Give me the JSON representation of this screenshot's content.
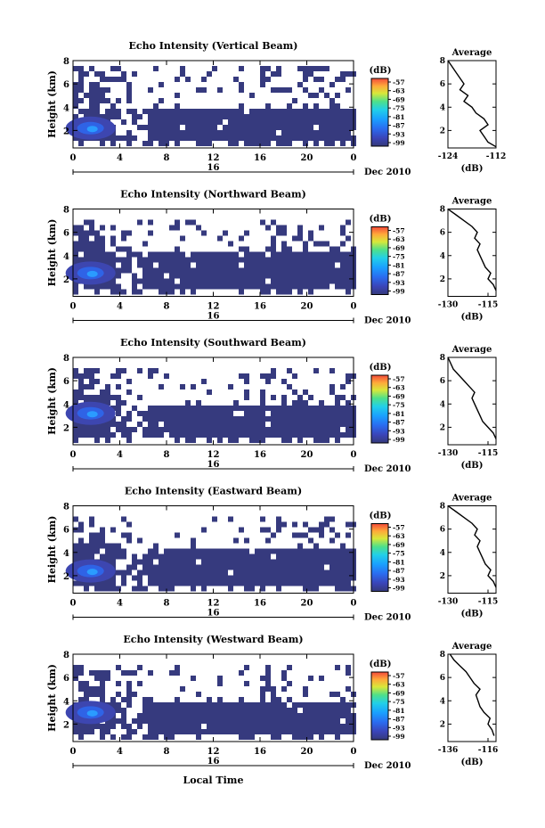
{
  "figure": {
    "xlabel": "Local Time",
    "date_label": "Dec 2010",
    "day_label": "16",
    "cbar_unit": "(dB)",
    "cbar_ticks": [
      "-57",
      "-63",
      "-69",
      "-75",
      "-81",
      "-87",
      "-93",
      "-99"
    ],
    "avg_title": "Average",
    "avg_xlabel": "(dB)"
  },
  "chart_data": [
    {
      "type": "heatmap",
      "title": "Echo Intensity (Vertical Beam)",
      "ylabel": "Height (km)",
      "xticks": [
        "0",
        "4",
        "8",
        "12",
        "16",
        "20",
        "0"
      ],
      "yticks": [
        "2",
        "4",
        "6",
        "8"
      ],
      "xlim": [
        0,
        24
      ],
      "ylim": [
        0.5,
        8
      ],
      "clim": [
        -99,
        -57
      ],
      "ice_base_km": 1.3,
      "ice_top_km": 4.0,
      "cloud_top_km": 7.4,
      "blob_time_h": 1.5,
      "blob_height_km": 2.2,
      "average_profile": {
        "xlim": [
          -124,
          -112
        ],
        "xticks": [
          "-124",
          "-112"
        ],
        "yticks": [
          "2",
          "4",
          "6",
          "8"
        ],
        "height_km": [
          0.6,
          1.0,
          1.5,
          2.0,
          2.5,
          3.0,
          3.5,
          4.0,
          4.5,
          5.0,
          5.5,
          6.0,
          6.5,
          7.0,
          7.5,
          8.0
        ],
        "db": [
          -112,
          -114,
          -115,
          -116,
          -114,
          -115,
          -117,
          -118,
          -120,
          -119,
          -121,
          -120,
          -121,
          -122,
          -123,
          -124
        ]
      }
    },
    {
      "type": "heatmap",
      "title": "Echo Intensity (Northward Beam)",
      "ylabel": "Height (km)",
      "xticks": [
        "0",
        "4",
        "8",
        "12",
        "16",
        "20",
        "0"
      ],
      "yticks": [
        "2",
        "4",
        "6",
        "8"
      ],
      "xlim": [
        0,
        24
      ],
      "ylim": [
        0.5,
        8
      ],
      "clim": [
        -99,
        -57
      ],
      "ice_base_km": 1.3,
      "ice_top_km": 4.1,
      "cloud_top_km": 7.3,
      "blob_time_h": 1.5,
      "blob_height_km": 2.5,
      "average_profile": {
        "xlim": [
          -130,
          -112
        ],
        "xticks": [
          "-130",
          "-115"
        ],
        "yticks": [
          "2",
          "4",
          "6",
          "8"
        ],
        "height_km": [
          1.0,
          1.5,
          2.0,
          2.5,
          3.0,
          3.5,
          4.0,
          4.5,
          5.0,
          5.5,
          6.0,
          6.5,
          7.0,
          7.5,
          8.0
        ],
        "db": [
          -112,
          -113,
          -115,
          -114,
          -116,
          -117,
          -118,
          -119,
          -118,
          -120,
          -119,
          -121,
          -124,
          -127,
          -130
        ]
      }
    },
    {
      "type": "heatmap",
      "title": "Echo Intensity (Southward Beam)",
      "ylabel": "Height (km)",
      "xticks": [
        "0",
        "4",
        "8",
        "12",
        "16",
        "20",
        "0"
      ],
      "yticks": [
        "2",
        "4",
        "6",
        "8"
      ],
      "xlim": [
        0,
        24
      ],
      "ylim": [
        0.5,
        8
      ],
      "clim": [
        -99,
        -57
      ],
      "ice_base_km": 1.3,
      "ice_top_km": 4.0,
      "cloud_top_km": 7.0,
      "blob_time_h": 1.5,
      "blob_height_km": 3.2,
      "average_profile": {
        "xlim": [
          -130,
          -112
        ],
        "xticks": [
          "-130",
          "-115"
        ],
        "yticks": [
          "2",
          "4",
          "6",
          "8"
        ],
        "height_km": [
          1.0,
          1.5,
          2.0,
          2.5,
          3.0,
          3.5,
          4.0,
          4.5,
          5.0,
          5.5,
          6.0,
          6.5,
          7.0,
          7.5,
          8.0
        ],
        "db": [
          -112,
          -113,
          -115,
          -117,
          -118,
          -119,
          -120,
          -121,
          -120,
          -122,
          -124,
          -126,
          -128,
          -129,
          -130
        ]
      }
    },
    {
      "type": "heatmap",
      "title": "Echo Intensity (Eastward Beam)",
      "ylabel": "Height (km)",
      "xticks": [
        "0",
        "4",
        "8",
        "12",
        "16",
        "20",
        "0"
      ],
      "yticks": [
        "2",
        "4",
        "6",
        "8"
      ],
      "xlim": [
        0,
        24
      ],
      "ylim": [
        0.5,
        8
      ],
      "clim": [
        -99,
        -57
      ],
      "ice_base_km": 1.3,
      "ice_top_km": 4.1,
      "cloud_top_km": 7.3,
      "blob_time_h": 1.5,
      "blob_height_km": 2.4,
      "average_profile": {
        "xlim": [
          -130,
          -112
        ],
        "xticks": [
          "-130",
          "-115"
        ],
        "yticks": [
          "2",
          "4",
          "6",
          "8"
        ],
        "height_km": [
          1.0,
          1.5,
          2.0,
          2.5,
          3.0,
          3.5,
          4.0,
          4.5,
          5.0,
          5.5,
          6.0,
          6.5,
          7.0,
          7.5,
          8.0
        ],
        "db": [
          -112,
          -113,
          -115,
          -114,
          -116,
          -117,
          -118,
          -119,
          -118,
          -120,
          -119,
          -121,
          -124,
          -127,
          -130
        ]
      }
    },
    {
      "type": "heatmap",
      "title": "Echo Intensity (Westward Beam)",
      "ylabel": "Height (km)",
      "xticks": [
        "0",
        "4",
        "8",
        "12",
        "16",
        "20",
        "0"
      ],
      "yticks": [
        "2",
        "4",
        "6",
        "8"
      ],
      "xlim": [
        0,
        24
      ],
      "ylim": [
        0.5,
        8
      ],
      "clim": [
        -99,
        -57
      ],
      "ice_base_km": 1.3,
      "ice_top_km": 4.0,
      "cloud_top_km": 7.1,
      "blob_time_h": 1.5,
      "blob_height_km": 3.0,
      "average_profile": {
        "xlim": [
          -136,
          -112
        ],
        "xticks": [
          "-136",
          "-116"
        ],
        "yticks": [
          "2",
          "4",
          "6",
          "8"
        ],
        "height_km": [
          1.0,
          1.5,
          2.0,
          2.5,
          3.0,
          3.5,
          4.0,
          4.5,
          5.0,
          5.5,
          6.0,
          6.5,
          7.0,
          7.5,
          8.0
        ],
        "db": [
          -113,
          -114,
          -116,
          -115,
          -118,
          -120,
          -121,
          -122,
          -120,
          -123,
          -125,
          -127,
          -130,
          -133,
          -135
        ]
      }
    }
  ]
}
